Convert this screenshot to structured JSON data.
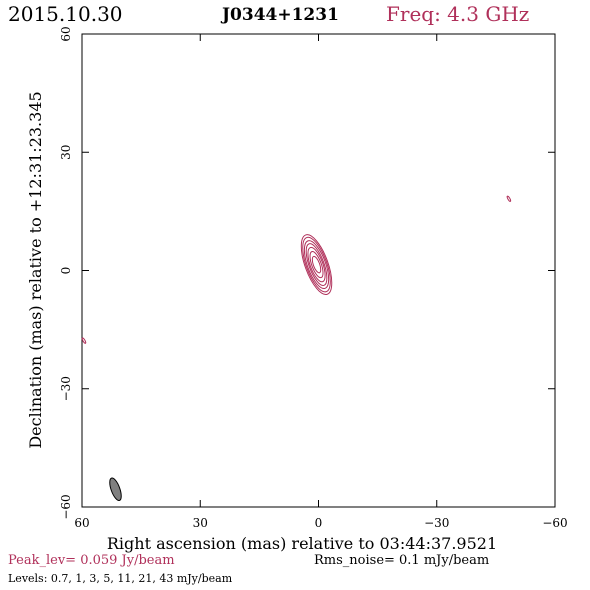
{
  "header": {
    "date": "2015.10.30",
    "source": "J0344+1231",
    "freq": "Freq: 4.3 GHz"
  },
  "footer": {
    "peak": "Peak_lev=  0.059 Jy/beam",
    "rms": "Rms_noise=  0.1 mJy/beam",
    "levels": "Levels: 0.7,   1,   3,   5,   11,   21,   43 mJy/beam"
  },
  "colors": {
    "contour": "#b0305a",
    "beam_fill": "#808080",
    "axis": "#000000"
  },
  "chart_data": {
    "type": "contour",
    "xlabel": "Right ascension (mas) relative to 03:44:37.9521",
    "ylabel": "Declination (mas) relative to +12:31:23.345",
    "xlim": [
      60,
      -60
    ],
    "ylim": [
      -60,
      60
    ],
    "xticks": [
      60,
      30,
      0,
      -30,
      -60
    ],
    "yticks": [
      60,
      30,
      0,
      -30,
      -60
    ],
    "xtick_labels": [
      "60",
      "30",
      "0",
      "−30",
      "−60"
    ],
    "ytick_labels": [
      "60",
      "30",
      "0",
      "−30",
      "−60"
    ],
    "levels_mJy_per_beam": [
      0.7,
      1,
      3,
      5,
      11,
      21,
      43
    ],
    "main_component": {
      "center_mas": [
        0.5,
        1.5
      ],
      "position_angle_deg": 20,
      "contours": [
        {
          "level": 0.7,
          "major": 8.0,
          "minor": 2.9
        },
        {
          "level": 1,
          "major": 7.3,
          "minor": 2.6
        },
        {
          "level": 3,
          "major": 6.4,
          "minor": 2.3
        },
        {
          "level": 5,
          "major": 5.6,
          "minor": 1.9
        },
        {
          "level": 11,
          "major": 4.6,
          "minor": 1.6
        },
        {
          "level": 21,
          "major": 3.5,
          "minor": 1.2
        },
        {
          "level": 43,
          "major": 2.2,
          "minor": 0.8
        }
      ]
    },
    "minor_features": [
      {
        "x": -48.3,
        "y": 18.2
      },
      {
        "x": 59.5,
        "y": -17.8
      }
    ],
    "beam": {
      "center_mas": [
        51.5,
        -55.5
      ],
      "major": 3.0,
      "minor": 1.1,
      "position_angle_deg": 20
    }
  }
}
